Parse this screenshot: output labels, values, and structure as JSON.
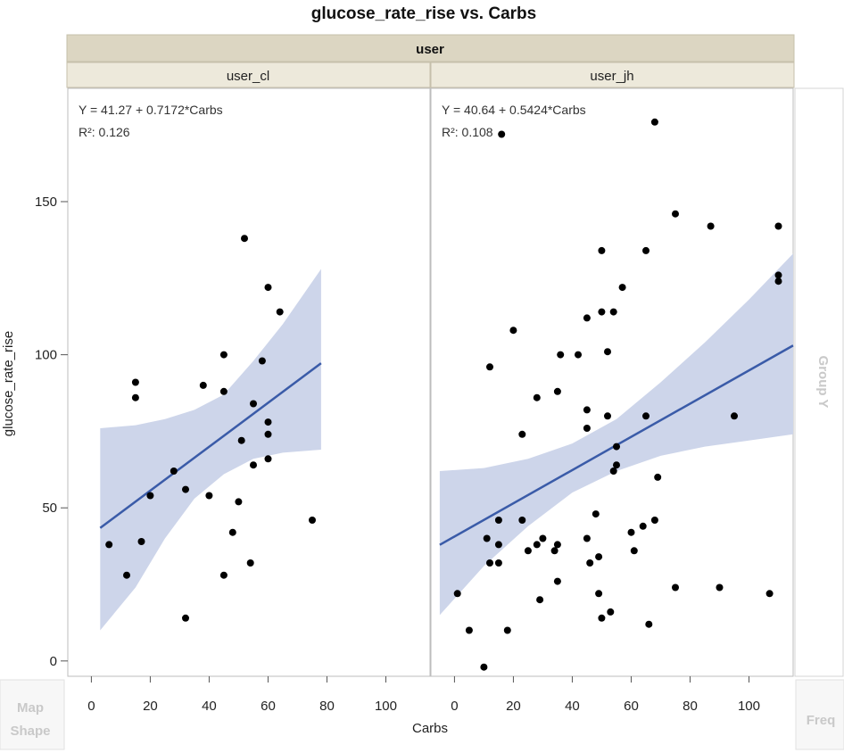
{
  "chart_data": {
    "type": "scatter",
    "title": "glucose_rate_rise vs. Carbs",
    "xlabel": "Carbs",
    "ylabel": "glucose_rate_rise",
    "group_label": "user",
    "xlim": [
      -8,
      115
    ],
    "ylim": [
      -5,
      187
    ],
    "x_ticks": [
      "0",
      "20",
      "40",
      "60",
      "80",
      "100",
      "120"
    ],
    "y_ticks": [
      0,
      50,
      100,
      150
    ],
    "zone_labels": {
      "group_y": "Group Y",
      "map_shape": "Map\nShape",
      "freq": "Freq"
    },
    "panels": [
      {
        "name": "user_cl",
        "equation": "Y = 41.27 + 0.7172*Carbs",
        "r2_label": "R²: 0.126",
        "fit": {
          "intercept": 41.27,
          "slope": 0.7172,
          "x_range": [
            3,
            78
          ]
        },
        "band": {
          "x": [
            3,
            15,
            25,
            35,
            45,
            55,
            65,
            78
          ],
          "upper": [
            76,
            77,
            79,
            82,
            87,
            98,
            110,
            128
          ],
          "lower": [
            10,
            24,
            40,
            53,
            61,
            66,
            68,
            69
          ]
        },
        "points": [
          [
            6,
            38
          ],
          [
            12,
            28
          ],
          [
            15,
            91
          ],
          [
            15,
            86
          ],
          [
            17,
            39
          ],
          [
            20,
            54
          ],
          [
            28,
            62
          ],
          [
            32,
            56
          ],
          [
            32,
            14
          ],
          [
            38,
            90
          ],
          [
            40,
            54
          ],
          [
            45,
            100
          ],
          [
            45,
            88
          ],
          [
            45,
            28
          ],
          [
            48,
            42
          ],
          [
            50,
            52
          ],
          [
            51,
            72
          ],
          [
            52,
            138
          ],
          [
            54,
            32
          ],
          [
            55,
            84
          ],
          [
            55,
            64
          ],
          [
            58,
            98
          ],
          [
            60,
            122
          ],
          [
            60,
            78
          ],
          [
            60,
            74
          ],
          [
            60,
            66
          ],
          [
            64,
            114
          ],
          [
            75,
            46
          ]
        ]
      },
      {
        "name": "user_jh",
        "equation": "Y = 40.64 + 0.5424*Carbs",
        "r2_label": "R²: 0.108",
        "fit": {
          "intercept": 40.64,
          "slope": 0.5424,
          "x_range": [
            -5,
            115
          ]
        },
        "band": {
          "x": [
            -5,
            10,
            25,
            40,
            55,
            70,
            85,
            100,
            115
          ],
          "upper": [
            62,
            63,
            66,
            71,
            79,
            91,
            104,
            118,
            133
          ],
          "lower": [
            15,
            31,
            44,
            55,
            62,
            67,
            70,
            72,
            74
          ]
        },
        "points": [
          [
            1,
            22
          ],
          [
            5,
            10
          ],
          [
            10,
            -2
          ],
          [
            11,
            40
          ],
          [
            12,
            96
          ],
          [
            12,
            32
          ],
          [
            15,
            46
          ],
          [
            15,
            38
          ],
          [
            15,
            32
          ],
          [
            16,
            172
          ],
          [
            18,
            10
          ],
          [
            20,
            108
          ],
          [
            23,
            74
          ],
          [
            23,
            46
          ],
          [
            25,
            36
          ],
          [
            28,
            86
          ],
          [
            28,
            38
          ],
          [
            29,
            20
          ],
          [
            30,
            40
          ],
          [
            34,
            36
          ],
          [
            35,
            88
          ],
          [
            35,
            38
          ],
          [
            35,
            26
          ],
          [
            36,
            100
          ],
          [
            42,
            100
          ],
          [
            45,
            112
          ],
          [
            45,
            82
          ],
          [
            45,
            76
          ],
          [
            45,
            40
          ],
          [
            46,
            32
          ],
          [
            48,
            48
          ],
          [
            49,
            34
          ],
          [
            49,
            22
          ],
          [
            50,
            134
          ],
          [
            50,
            114
          ],
          [
            50,
            14
          ],
          [
            52,
            101
          ],
          [
            52,
            80
          ],
          [
            53,
            16
          ],
          [
            54,
            114
          ],
          [
            54,
            62
          ],
          [
            55,
            70
          ],
          [
            55,
            64
          ],
          [
            57,
            122
          ],
          [
            60,
            42
          ],
          [
            61,
            36
          ],
          [
            64,
            44
          ],
          [
            65,
            134
          ],
          [
            65,
            80
          ],
          [
            66,
            12
          ],
          [
            68,
            176
          ],
          [
            68,
            46
          ],
          [
            69,
            60
          ],
          [
            75,
            146
          ],
          [
            75,
            24
          ],
          [
            87,
            142
          ],
          [
            90,
            24
          ],
          [
            95,
            80
          ],
          [
            107,
            22
          ],
          [
            110,
            142
          ],
          [
            110,
            126
          ],
          [
            110,
            124
          ]
        ]
      }
    ]
  },
  "colors": {
    "header_band": "#dcd6c2",
    "fit_line": "#3a5ba8",
    "band_fill": "#cdd5ea",
    "point": "#000000",
    "frame": "#bdbdbd"
  }
}
